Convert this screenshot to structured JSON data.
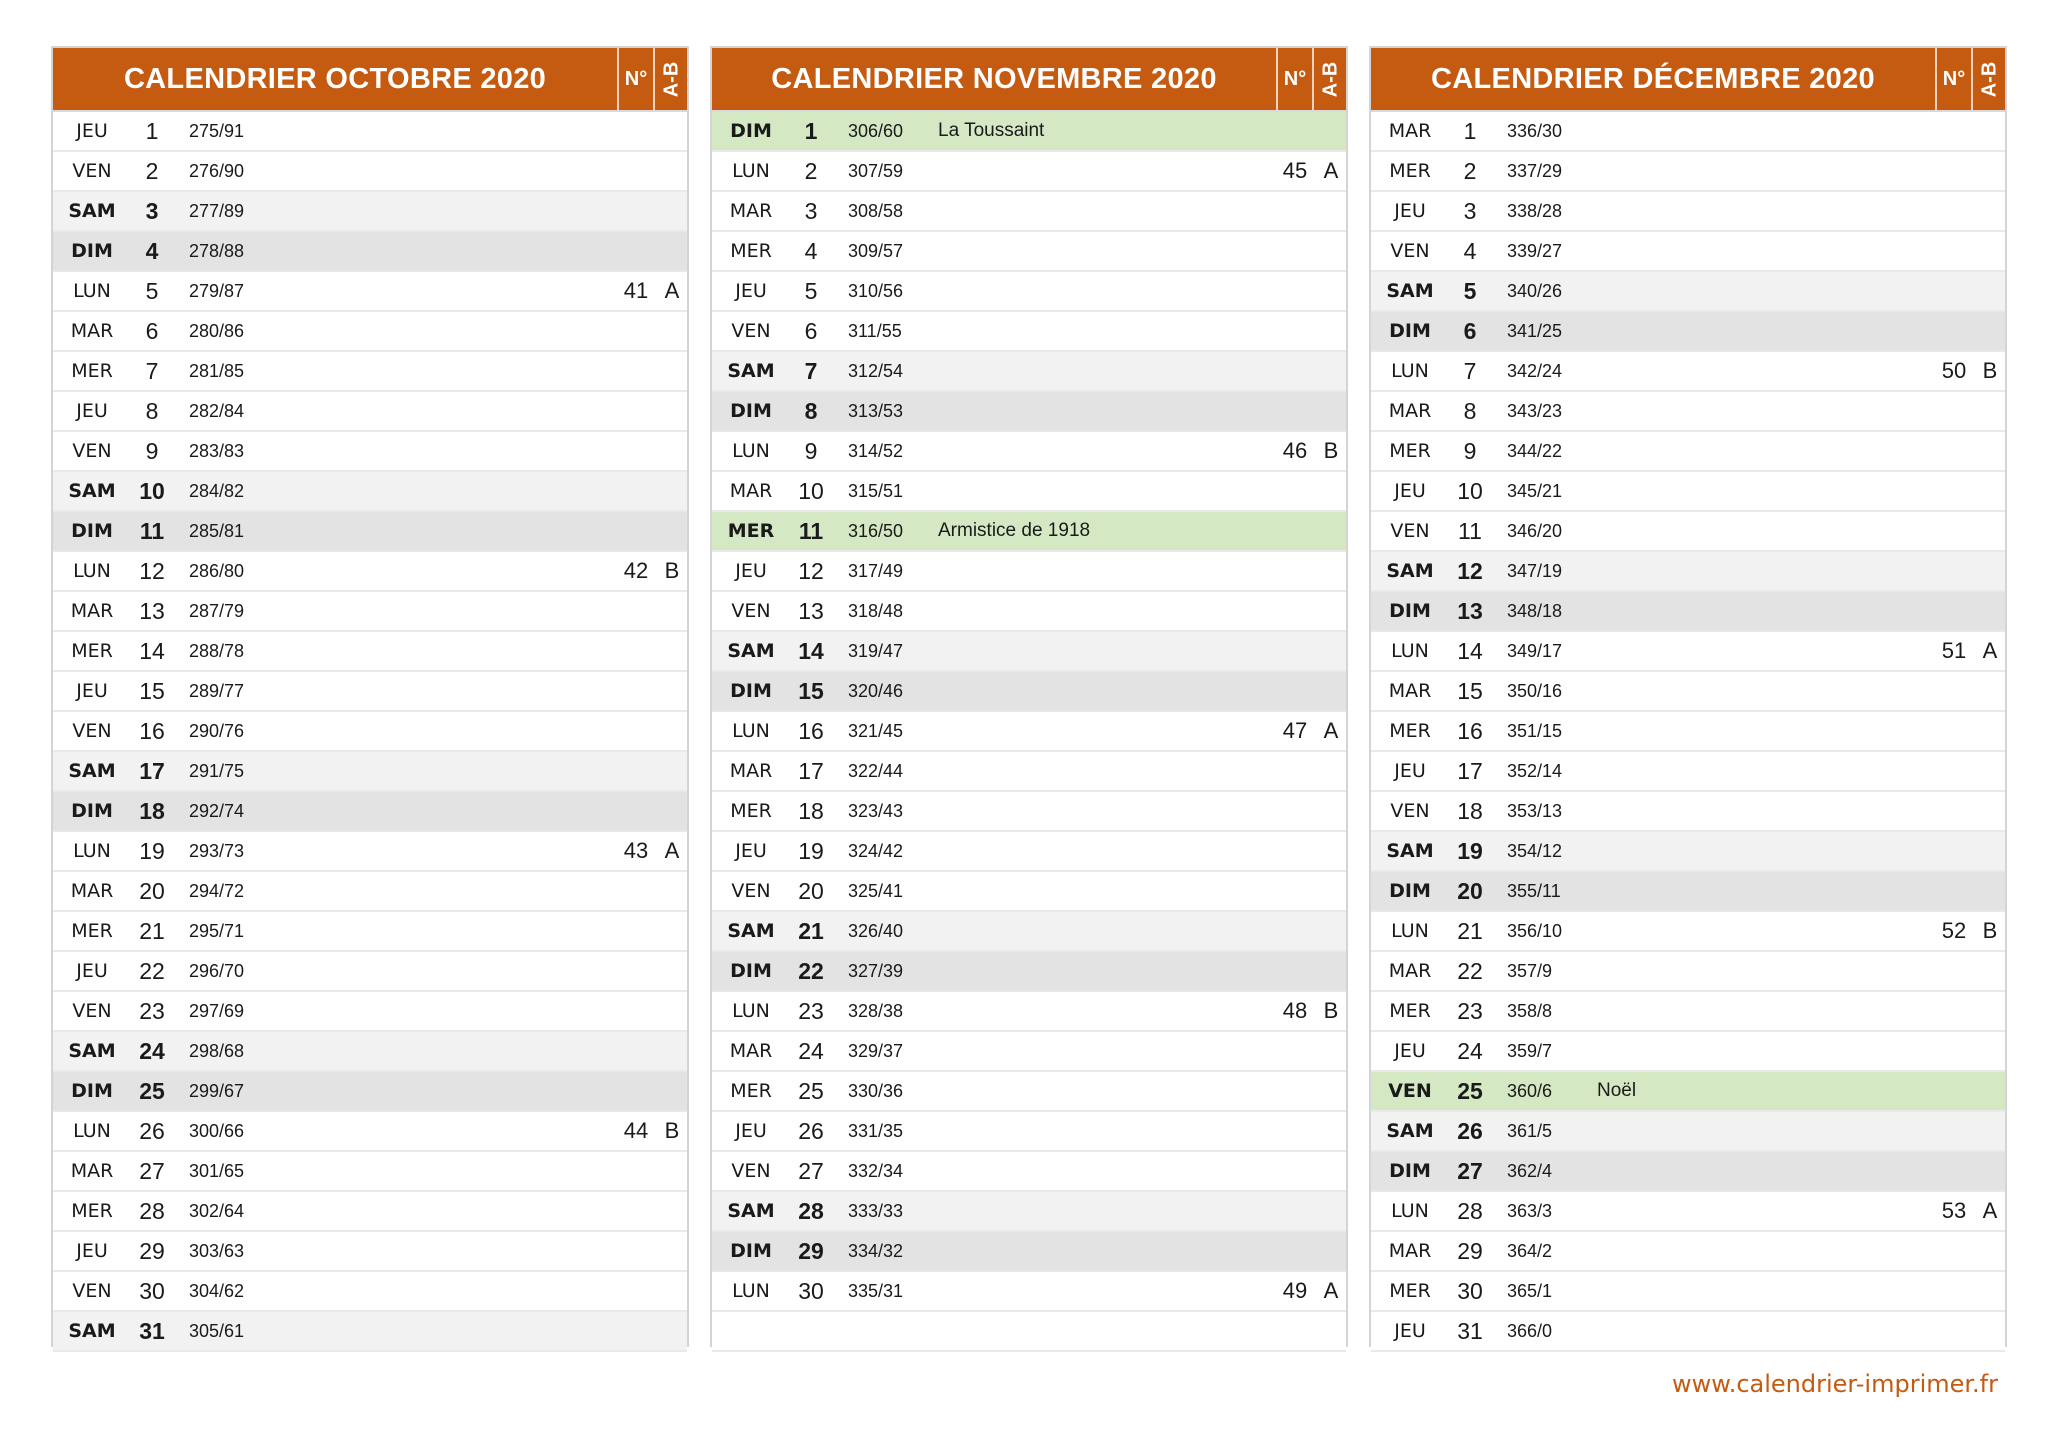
{
  "headers": {
    "week_label": "N°",
    "ab_label": "A-B"
  },
  "footer": "www.calendrier-imprimer.fr",
  "colors": {
    "header": "#c55a11",
    "saturday": "#f2f2f2",
    "sunday": "#e3e3e3",
    "holiday": "#d5e8c4"
  },
  "months": [
    {
      "title": "CALENDRIER OCTOBRE 2020",
      "rows": [
        {
          "dn": "JEU",
          "dd": "1",
          "dy": "275/91",
          "t": "n"
        },
        {
          "dn": "VEN",
          "dd": "2",
          "dy": "276/90",
          "t": "n"
        },
        {
          "dn": "SAM",
          "dd": "3",
          "dy": "277/89",
          "t": "sat"
        },
        {
          "dn": "DIM",
          "dd": "4",
          "dy": "278/88",
          "t": "sun"
        },
        {
          "dn": "LUN",
          "dd": "5",
          "dy": "279/87",
          "t": "n",
          "wk": "41",
          "ab": "A"
        },
        {
          "dn": "MAR",
          "dd": "6",
          "dy": "280/86",
          "t": "n"
        },
        {
          "dn": "MER",
          "dd": "7",
          "dy": "281/85",
          "t": "n"
        },
        {
          "dn": "JEU",
          "dd": "8",
          "dy": "282/84",
          "t": "n"
        },
        {
          "dn": "VEN",
          "dd": "9",
          "dy": "283/83",
          "t": "n"
        },
        {
          "dn": "SAM",
          "dd": "10",
          "dy": "284/82",
          "t": "sat"
        },
        {
          "dn": "DIM",
          "dd": "11",
          "dy": "285/81",
          "t": "sun"
        },
        {
          "dn": "LUN",
          "dd": "12",
          "dy": "286/80",
          "t": "n",
          "wk": "42",
          "ab": "B"
        },
        {
          "dn": "MAR",
          "dd": "13",
          "dy": "287/79",
          "t": "n"
        },
        {
          "dn": "MER",
          "dd": "14",
          "dy": "288/78",
          "t": "n"
        },
        {
          "dn": "JEU",
          "dd": "15",
          "dy": "289/77",
          "t": "n"
        },
        {
          "dn": "VEN",
          "dd": "16",
          "dy": "290/76",
          "t": "n"
        },
        {
          "dn": "SAM",
          "dd": "17",
          "dy": "291/75",
          "t": "sat"
        },
        {
          "dn": "DIM",
          "dd": "18",
          "dy": "292/74",
          "t": "sun"
        },
        {
          "dn": "LUN",
          "dd": "19",
          "dy": "293/73",
          "t": "n",
          "wk": "43",
          "ab": "A"
        },
        {
          "dn": "MAR",
          "dd": "20",
          "dy": "294/72",
          "t": "n"
        },
        {
          "dn": "MER",
          "dd": "21",
          "dy": "295/71",
          "t": "n"
        },
        {
          "dn": "JEU",
          "dd": "22",
          "dy": "296/70",
          "t": "n"
        },
        {
          "dn": "VEN",
          "dd": "23",
          "dy": "297/69",
          "t": "n"
        },
        {
          "dn": "SAM",
          "dd": "24",
          "dy": "298/68",
          "t": "sat"
        },
        {
          "dn": "DIM",
          "dd": "25",
          "dy": "299/67",
          "t": "sun"
        },
        {
          "dn": "LUN",
          "dd": "26",
          "dy": "300/66",
          "t": "n",
          "wk": "44",
          "ab": "B"
        },
        {
          "dn": "MAR",
          "dd": "27",
          "dy": "301/65",
          "t": "n"
        },
        {
          "dn": "MER",
          "dd": "28",
          "dy": "302/64",
          "t": "n"
        },
        {
          "dn": "JEU",
          "dd": "29",
          "dy": "303/63",
          "t": "n"
        },
        {
          "dn": "VEN",
          "dd": "30",
          "dy": "304/62",
          "t": "n"
        },
        {
          "dn": "SAM",
          "dd": "31",
          "dy": "305/61",
          "t": "sat"
        }
      ]
    },
    {
      "title": "CALENDRIER NOVEMBRE 2020",
      "rows": [
        {
          "dn": "DIM",
          "dd": "1",
          "dy": "306/60",
          "t": "hol",
          "ho": "La Toussaint"
        },
        {
          "dn": "LUN",
          "dd": "2",
          "dy": "307/59",
          "t": "n",
          "wk": "45",
          "ab": "A"
        },
        {
          "dn": "MAR",
          "dd": "3",
          "dy": "308/58",
          "t": "n"
        },
        {
          "dn": "MER",
          "dd": "4",
          "dy": "309/57",
          "t": "n"
        },
        {
          "dn": "JEU",
          "dd": "5",
          "dy": "310/56",
          "t": "n"
        },
        {
          "dn": "VEN",
          "dd": "6",
          "dy": "311/55",
          "t": "n"
        },
        {
          "dn": "SAM",
          "dd": "7",
          "dy": "312/54",
          "t": "sat"
        },
        {
          "dn": "DIM",
          "dd": "8",
          "dy": "313/53",
          "t": "sun"
        },
        {
          "dn": "LUN",
          "dd": "9",
          "dy": "314/52",
          "t": "n",
          "wk": "46",
          "ab": "B"
        },
        {
          "dn": "MAR",
          "dd": "10",
          "dy": "315/51",
          "t": "n"
        },
        {
          "dn": "MER",
          "dd": "11",
          "dy": "316/50",
          "t": "hol",
          "ho": "Armistice de 1918"
        },
        {
          "dn": "JEU",
          "dd": "12",
          "dy": "317/49",
          "t": "n"
        },
        {
          "dn": "VEN",
          "dd": "13",
          "dy": "318/48",
          "t": "n"
        },
        {
          "dn": "SAM",
          "dd": "14",
          "dy": "319/47",
          "t": "sat"
        },
        {
          "dn": "DIM",
          "dd": "15",
          "dy": "320/46",
          "t": "sun"
        },
        {
          "dn": "LUN",
          "dd": "16",
          "dy": "321/45",
          "t": "n",
          "wk": "47",
          "ab": "A"
        },
        {
          "dn": "MAR",
          "dd": "17",
          "dy": "322/44",
          "t": "n"
        },
        {
          "dn": "MER",
          "dd": "18",
          "dy": "323/43",
          "t": "n"
        },
        {
          "dn": "JEU",
          "dd": "19",
          "dy": "324/42",
          "t": "n"
        },
        {
          "dn": "VEN",
          "dd": "20",
          "dy": "325/41",
          "t": "n"
        },
        {
          "dn": "SAM",
          "dd": "21",
          "dy": "326/40",
          "t": "sat"
        },
        {
          "dn": "DIM",
          "dd": "22",
          "dy": "327/39",
          "t": "sun"
        },
        {
          "dn": "LUN",
          "dd": "23",
          "dy": "328/38",
          "t": "n",
          "wk": "48",
          "ab": "B"
        },
        {
          "dn": "MAR",
          "dd": "24",
          "dy": "329/37",
          "t": "n"
        },
        {
          "dn": "MER",
          "dd": "25",
          "dy": "330/36",
          "t": "n"
        },
        {
          "dn": "JEU",
          "dd": "26",
          "dy": "331/35",
          "t": "n"
        },
        {
          "dn": "VEN",
          "dd": "27",
          "dy": "332/34",
          "t": "n"
        },
        {
          "dn": "SAM",
          "dd": "28",
          "dy": "333/33",
          "t": "sat"
        },
        {
          "dn": "DIM",
          "dd": "29",
          "dy": "334/32",
          "t": "sun"
        },
        {
          "dn": "LUN",
          "dd": "30",
          "dy": "335/31",
          "t": "n",
          "wk": "49",
          "ab": "A"
        },
        {
          "dn": "",
          "dd": "",
          "dy": "",
          "t": "blank"
        }
      ]
    },
    {
      "title": "CALENDRIER DÉCEMBRE 2020",
      "rows": [
        {
          "dn": "MAR",
          "dd": "1",
          "dy": "336/30",
          "t": "n"
        },
        {
          "dn": "MER",
          "dd": "2",
          "dy": "337/29",
          "t": "n"
        },
        {
          "dn": "JEU",
          "dd": "3",
          "dy": "338/28",
          "t": "n"
        },
        {
          "dn": "VEN",
          "dd": "4",
          "dy": "339/27",
          "t": "n"
        },
        {
          "dn": "SAM",
          "dd": "5",
          "dy": "340/26",
          "t": "sat"
        },
        {
          "dn": "DIM",
          "dd": "6",
          "dy": "341/25",
          "t": "sun"
        },
        {
          "dn": "LUN",
          "dd": "7",
          "dy": "342/24",
          "t": "n",
          "wk": "50",
          "ab": "B"
        },
        {
          "dn": "MAR",
          "dd": "8",
          "dy": "343/23",
          "t": "n"
        },
        {
          "dn": "MER",
          "dd": "9",
          "dy": "344/22",
          "t": "n"
        },
        {
          "dn": "JEU",
          "dd": "10",
          "dy": "345/21",
          "t": "n"
        },
        {
          "dn": "VEN",
          "dd": "11",
          "dy": "346/20",
          "t": "n"
        },
        {
          "dn": "SAM",
          "dd": "12",
          "dy": "347/19",
          "t": "sat"
        },
        {
          "dn": "DIM",
          "dd": "13",
          "dy": "348/18",
          "t": "sun"
        },
        {
          "dn": "LUN",
          "dd": "14",
          "dy": "349/17",
          "t": "n",
          "wk": "51",
          "ab": "A"
        },
        {
          "dn": "MAR",
          "dd": "15",
          "dy": "350/16",
          "t": "n"
        },
        {
          "dn": "MER",
          "dd": "16",
          "dy": "351/15",
          "t": "n"
        },
        {
          "dn": "JEU",
          "dd": "17",
          "dy": "352/14",
          "t": "n"
        },
        {
          "dn": "VEN",
          "dd": "18",
          "dy": "353/13",
          "t": "n"
        },
        {
          "dn": "SAM",
          "dd": "19",
          "dy": "354/12",
          "t": "sat"
        },
        {
          "dn": "DIM",
          "dd": "20",
          "dy": "355/11",
          "t": "sun"
        },
        {
          "dn": "LUN",
          "dd": "21",
          "dy": "356/10",
          "t": "n",
          "wk": "52",
          "ab": "B"
        },
        {
          "dn": "MAR",
          "dd": "22",
          "dy": "357/9",
          "t": "n"
        },
        {
          "dn": "MER",
          "dd": "23",
          "dy": "358/8",
          "t": "n"
        },
        {
          "dn": "JEU",
          "dd": "24",
          "dy": "359/7",
          "t": "n"
        },
        {
          "dn": "VEN",
          "dd": "25",
          "dy": "360/6",
          "t": "hol",
          "ho": "Noël"
        },
        {
          "dn": "SAM",
          "dd": "26",
          "dy": "361/5",
          "t": "sat"
        },
        {
          "dn": "DIM",
          "dd": "27",
          "dy": "362/4",
          "t": "sun"
        },
        {
          "dn": "LUN",
          "dd": "28",
          "dy": "363/3",
          "t": "n",
          "wk": "53",
          "ab": "A"
        },
        {
          "dn": "MAR",
          "dd": "29",
          "dy": "364/2",
          "t": "n"
        },
        {
          "dn": "MER",
          "dd": "30",
          "dy": "365/1",
          "t": "n"
        },
        {
          "dn": "JEU",
          "dd": "31",
          "dy": "366/0",
          "t": "n"
        }
      ]
    }
  ]
}
